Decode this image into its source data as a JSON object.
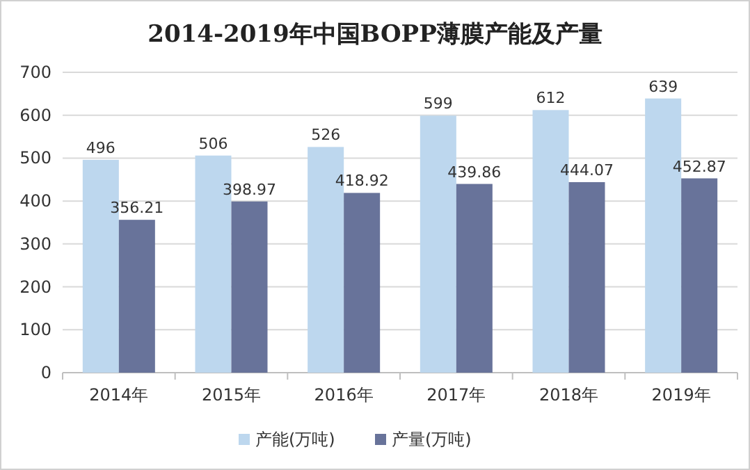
{
  "chart_data": {
    "type": "bar",
    "title": "2014-2019年中国BOPP薄膜产能及产量",
    "categories": [
      "2014年",
      "2015年",
      "2016年",
      "2017年",
      "2018年",
      "2019年"
    ],
    "series": [
      {
        "name": "产能(万吨)",
        "color": "#bdd7ee",
        "values": [
          496,
          506,
          526,
          599,
          612,
          639
        ]
      },
      {
        "name": "产量(万吨)",
        "color": "#68739a",
        "values": [
          356.21,
          398.97,
          418.92,
          439.86,
          444.07,
          452.87
        ]
      }
    ],
    "ylim": [
      0,
      700
    ],
    "yticks": [
      0,
      100,
      200,
      300,
      400,
      500,
      600,
      700
    ],
    "grid": "y",
    "legend": "bottom",
    "data_labels": true
  }
}
